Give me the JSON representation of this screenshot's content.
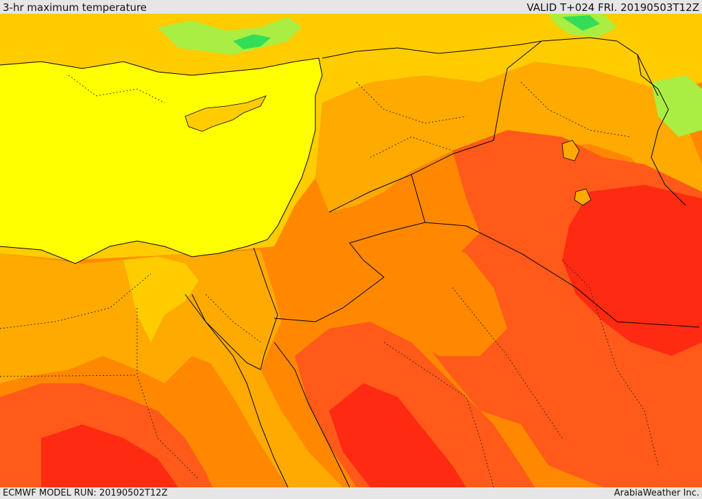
{
  "header": {
    "title": "3-hr maximum temperature",
    "valid": "VALID T+024 FRI. 20190503T12Z"
  },
  "footer": {
    "model_run": "ECMWF MODEL RUN: 20190502T12Z",
    "credit": "ArabiaWeather Inc."
  },
  "palette": {
    "cool_green": "#33dd55",
    "light_green": "#aaee44",
    "yellow": "#ffff00",
    "light_orange": "#ffcc00",
    "orange": "#ffaa00",
    "dark_orange": "#ff8800",
    "red_orange": "#ff5a1a",
    "red": "#ff2a12"
  }
}
